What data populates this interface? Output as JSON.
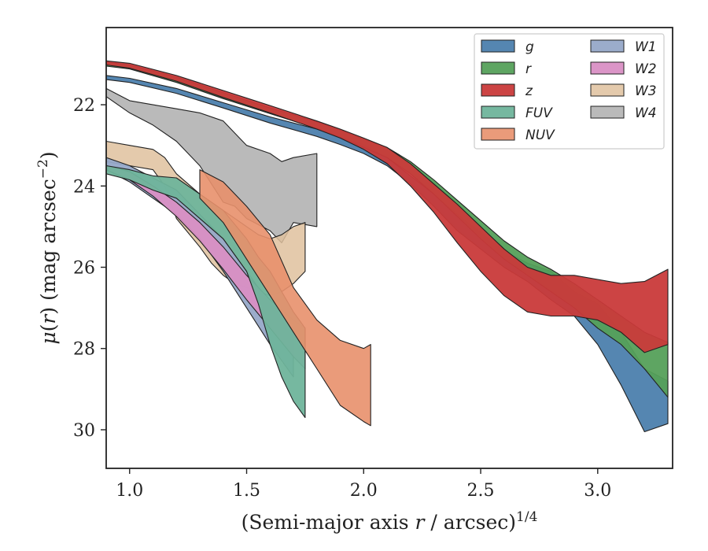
{
  "chart_data": {
    "type": "area",
    "xlabel": "(Semi-major axis r / arcsec)^1/4",
    "ylabel": "μ(r) (mag arcsec^-2)",
    "x_ticks": [
      "1.0",
      "1.5",
      "2.0",
      "2.5",
      "3.0"
    ],
    "y_ticks": [
      "22",
      "24",
      "26",
      "28",
      "30"
    ],
    "xlim": [
      0.9,
      3.32
    ],
    "ylim": [
      30.95,
      20.1
    ],
    "legend_position": "top-right",
    "series": [
      {
        "name": "g",
        "color": "#4c7fad",
        "opacity": 0.95,
        "x": [
          0.9,
          1.0,
          1.2,
          1.4,
          1.6,
          1.8,
          1.9,
          2.0,
          2.1,
          2.2,
          2.3,
          2.4,
          2.5,
          2.6,
          2.7,
          2.8,
          2.9,
          3.0,
          3.1,
          3.2,
          3.3
        ],
        "y1": [
          21.28,
          21.35,
          21.6,
          21.95,
          22.3,
          22.6,
          22.8,
          22.98,
          23.3,
          23.75,
          24.2,
          24.7,
          25.15,
          25.6,
          25.9,
          26.1,
          26.6,
          26.9,
          27.6,
          28.5,
          28.8
        ],
        "y2": [
          21.38,
          21.45,
          21.72,
          22.08,
          22.45,
          22.78,
          22.98,
          23.2,
          23.5,
          23.95,
          24.5,
          25.1,
          25.55,
          26.0,
          26.35,
          26.8,
          27.2,
          27.9,
          28.9,
          30.05,
          29.85
        ]
      },
      {
        "name": "r",
        "color": "#55a05a",
        "opacity": 0.95,
        "x": [
          0.9,
          1.0,
          1.2,
          1.4,
          1.6,
          1.8,
          1.9,
          2.0,
          2.1,
          2.2,
          2.3,
          2.4,
          2.5,
          2.6,
          2.7,
          2.8,
          2.9,
          3.0,
          3.1,
          3.2,
          3.3
        ],
        "y1": [
          20.95,
          21.02,
          21.32,
          21.7,
          22.08,
          22.42,
          22.62,
          22.85,
          23.05,
          23.4,
          23.85,
          24.35,
          24.85,
          25.35,
          25.75,
          26.05,
          26.4,
          26.8,
          27.2,
          27.6,
          27.85
        ],
        "y2": [
          21.05,
          21.12,
          21.45,
          21.85,
          22.22,
          22.58,
          22.8,
          23.05,
          23.3,
          23.7,
          24.2,
          24.75,
          25.3,
          25.8,
          26.2,
          26.6,
          27.0,
          27.5,
          27.9,
          28.5,
          29.2
        ]
      },
      {
        "name": "z",
        "color": "#c93a3a",
        "opacity": 0.95,
        "x": [
          0.9,
          1.0,
          1.2,
          1.4,
          1.6,
          1.8,
          1.9,
          2.0,
          2.1,
          2.2,
          2.3,
          2.4,
          2.5,
          2.6,
          2.7,
          2.8,
          2.9,
          3.0,
          3.1,
          3.2,
          3.3
        ],
        "y1": [
          20.92,
          20.98,
          21.28,
          21.65,
          22.02,
          22.4,
          22.6,
          22.82,
          23.05,
          23.45,
          23.95,
          24.45,
          25.0,
          25.55,
          26.0,
          26.2,
          26.2,
          26.3,
          26.4,
          26.35,
          26.05
        ],
        "y2": [
          21.02,
          21.1,
          21.42,
          21.82,
          22.2,
          22.6,
          22.82,
          23.1,
          23.45,
          24.0,
          24.65,
          25.4,
          26.1,
          26.7,
          27.1,
          27.2,
          27.2,
          27.3,
          27.6,
          28.1,
          27.9
        ]
      },
      {
        "name": "FUV",
        "color": "#6fb49b",
        "opacity": 0.95,
        "x": [
          0.9,
          1.0,
          1.1,
          1.2,
          1.3,
          1.4,
          1.5,
          1.55,
          1.6,
          1.65,
          1.7,
          1.75
        ],
        "y1": [
          23.5,
          23.6,
          23.75,
          23.8,
          24.2,
          24.6,
          25.3,
          25.75,
          26.1,
          26.6,
          27.1,
          27.5
        ],
        "y2": [
          23.7,
          23.85,
          24.1,
          24.3,
          24.8,
          25.3,
          26.1,
          26.9,
          27.9,
          28.7,
          29.3,
          29.7
        ]
      },
      {
        "name": "NUV",
        "color": "#e8906c",
        "opacity": 0.9,
        "x": [
          1.3,
          1.4,
          1.5,
          1.6,
          1.7,
          1.8,
          1.9,
          2.0,
          2.03
        ],
        "y1": [
          23.6,
          23.9,
          24.5,
          25.2,
          26.5,
          27.3,
          27.8,
          28.0,
          27.9
        ],
        "y2": [
          24.3,
          24.9,
          25.8,
          26.7,
          27.6,
          28.5,
          29.4,
          29.8,
          29.9
        ]
      },
      {
        "name": "W1",
        "color": "#96a8c8",
        "opacity": 0.95,
        "x": [
          0.9,
          1.0,
          1.1,
          1.2,
          1.3,
          1.4,
          1.5,
          1.6,
          1.7
        ],
        "y1": [
          23.3,
          23.5,
          23.8,
          24.1,
          24.7,
          25.3,
          26.1,
          26.9,
          27.5
        ],
        "y2": [
          23.6,
          23.9,
          24.3,
          24.7,
          25.3,
          26.1,
          27.0,
          27.9,
          28.7
        ]
      },
      {
        "name": "W2",
        "color": "#d98fc4",
        "opacity": 0.95,
        "x": [
          0.9,
          1.0,
          1.1,
          1.2,
          1.3,
          1.4,
          1.5,
          1.6,
          1.7,
          1.75
        ],
        "y1": [
          23.5,
          23.65,
          24.0,
          24.4,
          24.9,
          25.5,
          26.2,
          26.8,
          27.3,
          27.5
        ],
        "y2": [
          23.6,
          23.85,
          24.25,
          24.75,
          25.35,
          26.05,
          26.8,
          27.5,
          28.2,
          28.5
        ]
      },
      {
        "name": "W3",
        "color": "#dfc19e",
        "opacity": 0.85,
        "x": [
          0.9,
          1.0,
          1.1,
          1.15,
          1.2,
          1.3,
          1.35,
          1.4,
          1.45,
          1.5,
          1.55,
          1.6,
          1.65,
          1.7,
          1.75
        ],
        "y1": [
          22.9,
          23.0,
          23.1,
          23.3,
          23.7,
          24.2,
          24.4,
          24.6,
          24.8,
          25.0,
          25.2,
          25.3,
          25.2,
          25.0,
          24.9
        ],
        "y2": [
          23.4,
          23.5,
          23.6,
          24.0,
          24.8,
          25.5,
          25.9,
          26.2,
          26.4,
          26.5,
          26.6,
          26.7,
          26.6,
          26.4,
          26.1
        ]
      },
      {
        "name": "W4",
        "color": "#b6b6b6",
        "opacity": 0.95,
        "x": [
          0.9,
          1.0,
          1.1,
          1.2,
          1.3,
          1.4,
          1.45,
          1.5,
          1.6,
          1.65,
          1.7,
          1.8
        ],
        "y1": [
          21.6,
          21.9,
          22.0,
          22.1,
          22.2,
          22.4,
          22.7,
          23.0,
          23.2,
          23.4,
          23.3,
          23.2
        ],
        "y2": [
          21.8,
          22.2,
          22.5,
          22.9,
          23.5,
          24.4,
          24.5,
          24.8,
          25.1,
          25.4,
          24.9,
          25.0
        ]
      }
    ]
  }
}
